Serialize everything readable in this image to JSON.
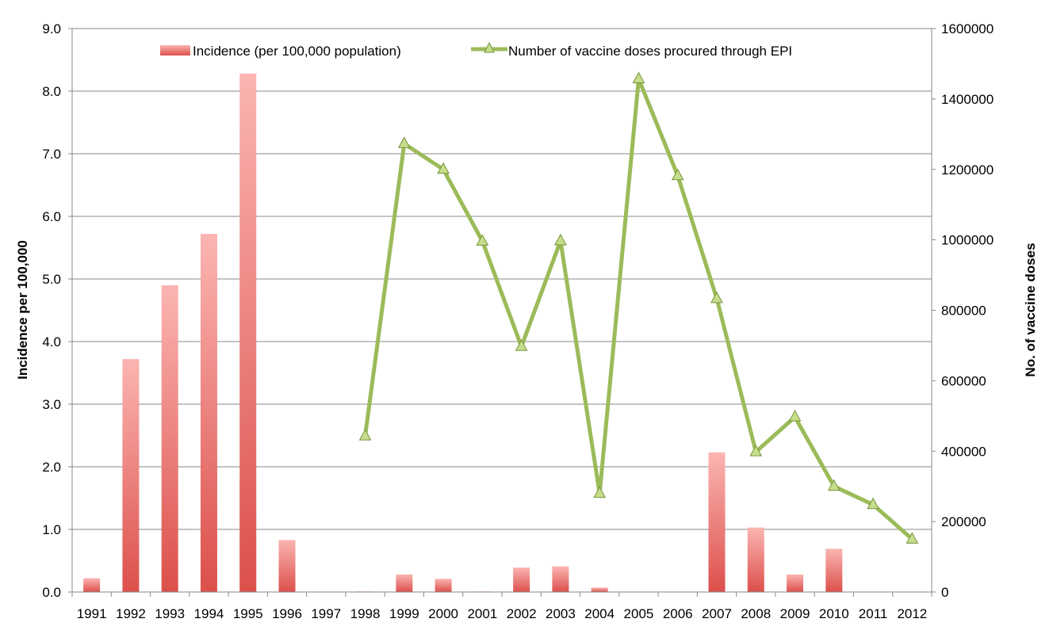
{
  "chart_data": {
    "type": "bar+line",
    "title": "",
    "categories": [
      "1991",
      "1992",
      "1993",
      "1994",
      "1995",
      "1996",
      "1997",
      "1998",
      "1999",
      "2000",
      "2001",
      "2002",
      "2003",
      "2004",
      "2005",
      "2006",
      "2007",
      "2008",
      "2009",
      "2010",
      "2011",
      "2012"
    ],
    "series": [
      {
        "name": "Incidence (per 100,000 population)",
        "type": "bar",
        "axis": "left",
        "color": "#e05a55",
        "values": [
          0.22,
          3.72,
          4.9,
          5.72,
          8.28,
          0.83,
          0.0,
          0.01,
          0.28,
          0.21,
          0.01,
          0.39,
          0.41,
          0.07,
          0.0,
          0.0,
          2.23,
          1.03,
          0.28,
          0.69,
          0.0,
          0.0
        ]
      },
      {
        "name": "Number of vaccine doses procured through EPI",
        "type": "line",
        "axis": "right",
        "color": "#9bbb59",
        "values": [
          null,
          null,
          null,
          null,
          null,
          null,
          null,
          443000,
          1273000,
          1200000,
          996000,
          697000,
          997000,
          280000,
          1457000,
          1182000,
          833000,
          398000,
          497000,
          300000,
          248000,
          150000
        ]
      }
    ],
    "y_left": {
      "label": "Incidence  per 100,000",
      "lim": [
        0,
        9
      ],
      "ticks": [
        "0.0",
        "1.0",
        "2.0",
        "3.0",
        "4.0",
        "5.0",
        "6.0",
        "7.0",
        "8.0",
        "9.0"
      ]
    },
    "y_right": {
      "label": "No. of vaccine doses",
      "lim": [
        0,
        1600000
      ],
      "ticks": [
        "0",
        "200000",
        "400000",
        "600000",
        "800000",
        "1000000",
        "1200000",
        "1400000",
        "1600000"
      ]
    },
    "grid": true,
    "legend": "top-center"
  }
}
